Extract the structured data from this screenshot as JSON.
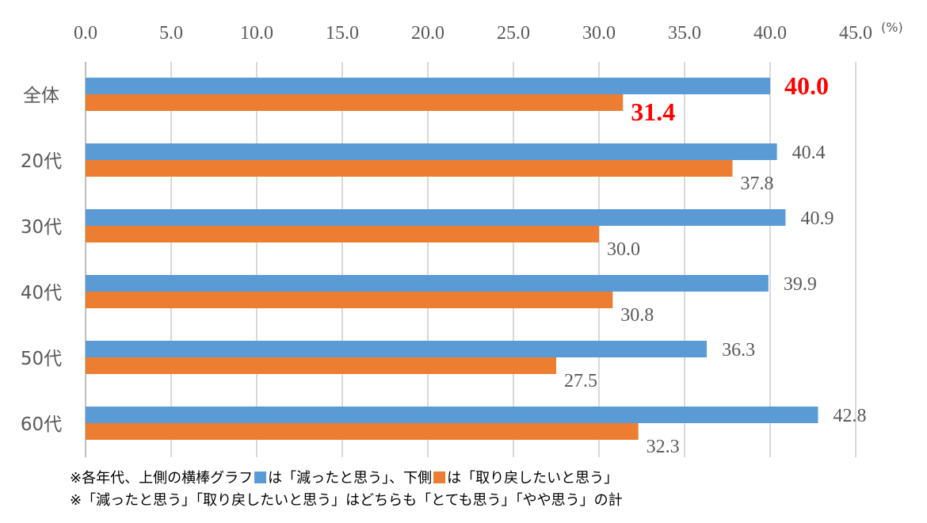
{
  "chart_data": {
    "type": "bar",
    "orientation": "horizontal",
    "categories": [
      "全体",
      "20代",
      "30代",
      "40代",
      "50代",
      "60代"
    ],
    "series": [
      {
        "values": [
          40.0,
          40.4,
          40.9,
          39.9,
          36.3,
          42.8
        ],
        "color": "#5b9bd5"
      },
      {
        "values": [
          31.4,
          37.8,
          30.0,
          30.8,
          27.5,
          32.3
        ],
        "color": "#ed7d31"
      }
    ],
    "xlim": [
      0,
      45
    ],
    "xticks": [
      "0.0",
      "5.0",
      "10.0",
      "15.0",
      "20.0",
      "25.0",
      "30.0",
      "35.0",
      "40.0",
      "45.0"
    ],
    "x_unit": "(%)",
    "tick_position": "top",
    "grid": true,
    "highlight_category": "全体",
    "highlight_color": "#ff0000"
  },
  "notes": {
    "line1_a": "※各年代、上側の横棒グラフ",
    "line1_b": "は「減ったと思う」、下側",
    "line1_c": "は「取り戻したいと思う」",
    "line2": "※「減ったと思う」「取り戻したいと思う」はどちらも「とても思う」「やや思う」の計"
  }
}
